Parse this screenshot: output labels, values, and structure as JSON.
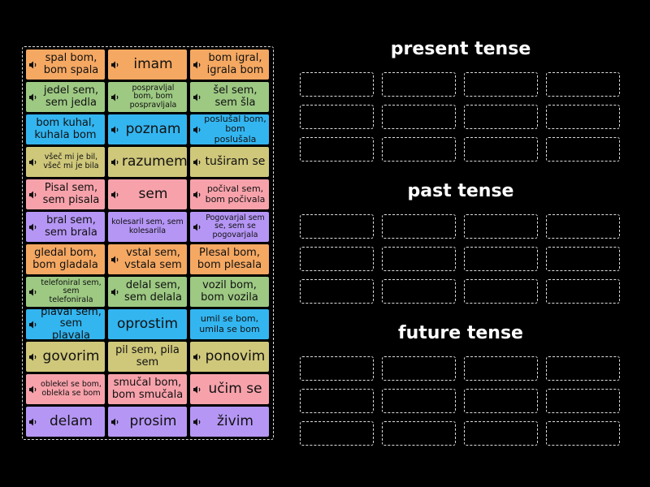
{
  "rows": [
    {
      "color": "#f5a862",
      "tiles": [
        {
          "text": "spal bom, bom spala",
          "audio": true
        },
        {
          "text": "imam",
          "audio": true
        },
        {
          "text": "bom igral, igrala bom",
          "audio": true
        }
      ]
    },
    {
      "color": "#9dc983",
      "tiles": [
        {
          "text": "jedel sem, sem jedla",
          "audio": true
        },
        {
          "text": "pospravljal bom, bom pospravljala",
          "audio": true
        },
        {
          "text": "šel sem, sem šla",
          "audio": true
        }
      ]
    },
    {
      "color": "#33b5f0",
      "tiles": [
        {
          "text": "bom kuhal, kuhala bom",
          "audio": false
        },
        {
          "text": "poznam",
          "audio": true
        },
        {
          "text": "poslušal bom, bom poslušala",
          "audio": true
        }
      ]
    },
    {
      "color": "#cfc77a",
      "tiles": [
        {
          "text": "všeč mi je bil, všeč mi je bila",
          "audio": true
        },
        {
          "text": "razumem",
          "audio": true
        },
        {
          "text": "tuširam se",
          "audio": true
        }
      ]
    },
    {
      "color": "#f7a2ab",
      "tiles": [
        {
          "text": "Pisal sem, sem pisala",
          "audio": true
        },
        {
          "text": "sem",
          "audio": true
        },
        {
          "text": "počival sem, bom počivala",
          "audio": true
        }
      ]
    },
    {
      "color": "#b596f5",
      "tiles": [
        {
          "text": "bral sem, sem brala",
          "audio": true
        },
        {
          "text": "kolesaril sem, sem kolesarila",
          "audio": false
        },
        {
          "text": "Pogovarjal sem se, sem se pogovarjala",
          "audio": true
        }
      ]
    },
    {
      "color": "#f5a862",
      "tiles": [
        {
          "text": "gledal bom, bom gladala",
          "audio": false
        },
        {
          "text": "vstal sem, vstala sem",
          "audio": true
        },
        {
          "text": "Plesal bom, bom plesala",
          "audio": false
        }
      ]
    },
    {
      "color": "#9dc983",
      "tiles": [
        {
          "text": "telefoniral sem, sem telefonirala",
          "audio": true
        },
        {
          "text": "delal sem, sem delala",
          "audio": true
        },
        {
          "text": "vozil bom, bom vozila",
          "audio": false
        }
      ]
    },
    {
      "color": "#33b5f0",
      "tiles": [
        {
          "text": "plaval sem, sem plavala",
          "audio": true
        },
        {
          "text": "oprostim",
          "audio": false
        },
        {
          "text": "umil se bom, umila se bom",
          "audio": false
        }
      ]
    },
    {
      "color": "#cfc77a",
      "tiles": [
        {
          "text": "govorim",
          "audio": true
        },
        {
          "text": "pil sem, pila sem",
          "audio": false
        },
        {
          "text": "ponovim",
          "audio": true
        }
      ]
    },
    {
      "color": "#f7a2ab",
      "tiles": [
        {
          "text": "oblekel se bom, oblekla se bom",
          "audio": true
        },
        {
          "text": "smučal bom, bom smučala",
          "audio": false
        },
        {
          "text": "učim se",
          "audio": true
        }
      ]
    },
    {
      "color": "#b596f5",
      "tiles": [
        {
          "text": "delam",
          "audio": true
        },
        {
          "text": "prosim",
          "audio": true
        },
        {
          "text": "živim",
          "audio": true
        }
      ]
    }
  ],
  "groups": [
    "present tense",
    "past tense",
    "future tense"
  ]
}
